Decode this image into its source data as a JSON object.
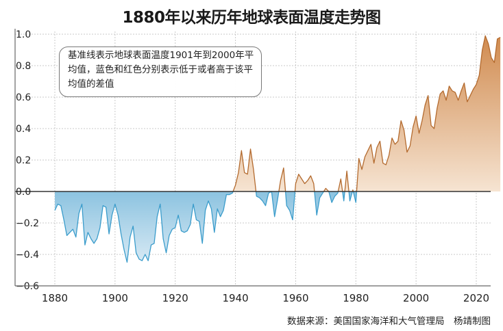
{
  "title": "1880年以来历年地球表面温度走势图",
  "note": "基准线表示地球表面温度1901年到2000年平均值，蓝色和红色分别表示低于或者高于该平均值的差值",
  "source": "数据来源：美国国家海洋和大气管理局　杨靖制图",
  "colors": {
    "negative_line": "#3a9ccb",
    "negative_fill_top": "#8cc3e0",
    "negative_fill_bottom": "#d7e9f4",
    "positive_line": "#b36a2e",
    "positive_fill_top": "#d08a4e",
    "positive_fill_bottom": "#f6e4d2",
    "baseline": "#333333",
    "grid": "#c8c8c8"
  },
  "chart_data": {
    "type": "area",
    "title": "1880年以来历年地球表面温度走势图",
    "xlabel": "",
    "ylabel": "",
    "xlim": [
      1876,
      2024
    ],
    "ylim": [
      -0.6,
      1.0
    ],
    "xticks": [
      1880,
      1900,
      1920,
      1940,
      1960,
      1980,
      2000,
      2020
    ],
    "yticks": [
      1.0,
      0.8,
      0.6,
      0.4,
      0.2,
      0.0,
      -0.2,
      -0.4,
      -0.6
    ],
    "ytick_labels": [
      "1.0",
      "0.8",
      "0.6",
      "0.4",
      "0.2",
      "0.0",
      "−0.2",
      "−0.4",
      "−0.6"
    ],
    "baseline": 0.0,
    "grid": true,
    "x_start": 1880,
    "values": [
      -0.12,
      -0.08,
      -0.09,
      -0.18,
      -0.28,
      -0.26,
      -0.24,
      -0.29,
      -0.14,
      -0.08,
      -0.34,
      -0.26,
      -0.3,
      -0.33,
      -0.3,
      -0.23,
      -0.09,
      -0.1,
      -0.27,
      -0.15,
      -0.08,
      -0.15,
      -0.27,
      -0.37,
      -0.45,
      -0.29,
      -0.22,
      -0.39,
      -0.43,
      -0.44,
      -0.4,
      -0.44,
      -0.34,
      -0.33,
      -0.16,
      -0.08,
      -0.3,
      -0.39,
      -0.28,
      -0.24,
      -0.23,
      -0.15,
      -0.25,
      -0.26,
      -0.25,
      -0.21,
      -0.08,
      -0.18,
      -0.19,
      -0.33,
      -0.12,
      -0.06,
      -0.11,
      -0.26,
      -0.11,
      -0.16,
      -0.12,
      -0.02,
      -0.02,
      -0.01,
      0.04,
      0.12,
      0.26,
      0.12,
      0.11,
      0.27,
      0.14,
      -0.03,
      -0.04,
      -0.06,
      -0.09,
      -0.01,
      0.0,
      -0.16,
      -0.05,
      0.07,
      0.15,
      -0.09,
      -0.12,
      -0.18,
      0.05,
      0.11,
      0.08,
      0.05,
      0.07,
      0.1,
      0.05,
      -0.15,
      -0.04,
      -0.01,
      0.02,
      0.0,
      -0.07,
      -0.03,
      -0.01,
      0.08,
      -0.06,
      0.13,
      -0.06,
      0.01,
      -0.07,
      0.21,
      0.14,
      0.22,
      0.26,
      0.3,
      0.18,
      0.28,
      0.32,
      0.18,
      0.17,
      0.23,
      0.34,
      0.3,
      0.32,
      0.45,
      0.39,
      0.25,
      0.29,
      0.41,
      0.48,
      0.37,
      0.45,
      0.55,
      0.61,
      0.42,
      0.4,
      0.53,
      0.62,
      0.64,
      0.58,
      0.67,
      0.64,
      0.63,
      0.58,
      0.64,
      0.69,
      0.57,
      0.61,
      0.65,
      0.68,
      0.74,
      0.9,
      0.99,
      0.94,
      0.85,
      0.82,
      0.97,
      0.98
    ]
  }
}
